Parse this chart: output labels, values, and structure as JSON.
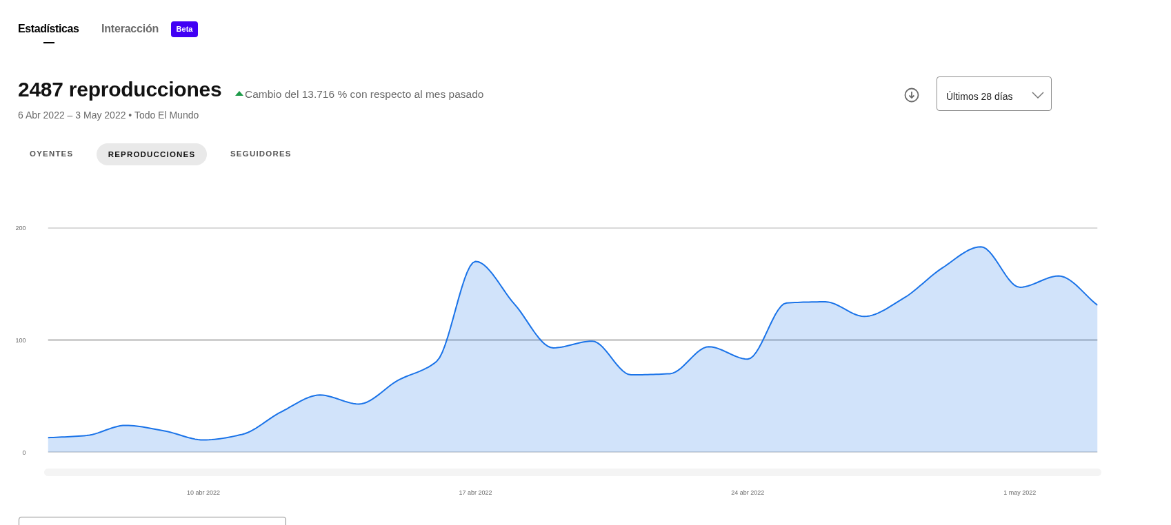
{
  "chart_data": {
    "type": "area",
    "title": "2487 reproducciones",
    "subtitle": "6 Abr 2022 – 3 May 2022 • Todo El Mundo",
    "annotations": [
      "Estadísticas",
      "Interacción",
      "Beta",
      "Cambio del 13.716 % con respecto al mes pasado",
      "OYENTES",
      "REPRODUCCIONES",
      "SEGUIDORES",
      "Últimos 28 días"
    ],
    "x": [
      "2022-04-06",
      "2022-04-07",
      "2022-04-08",
      "2022-04-09",
      "2022-04-10",
      "2022-04-11",
      "2022-04-12",
      "2022-04-13",
      "2022-04-14",
      "2022-04-15",
      "2022-04-16",
      "2022-04-17",
      "2022-04-18",
      "2022-04-19",
      "2022-04-20",
      "2022-04-21",
      "2022-04-22",
      "2022-04-23",
      "2022-04-24",
      "2022-04-25",
      "2022-04-26",
      "2022-04-27",
      "2022-04-28",
      "2022-04-29",
      "2022-04-30",
      "2022-05-01",
      "2022-05-02",
      "2022-05-03"
    ],
    "series": [
      {
        "color": "#1a73e8",
        "values": [
          13,
          15,
          24,
          19,
          11,
          16,
          36,
          51,
          43,
          64,
          81,
          170,
          132,
          93,
          99,
          69,
          70,
          94,
          83,
          133,
          134,
          121,
          137,
          164,
          183,
          147,
          157,
          131
        ]
      }
    ],
    "xlim": [
      "2022-04-06",
      "2022-05-03"
    ],
    "xticks": [
      {
        "value": "2022-04-10",
        "label": "10 abr 2022"
      },
      {
        "value": "2022-04-17",
        "label": "17 abr 2022"
      },
      {
        "value": "2022-04-24",
        "label": "24 abr 2022"
      },
      {
        "value": "2022-05-01",
        "label": "1 may 2022"
      }
    ],
    "ylim": [
      0,
      200
    ],
    "yticks": [
      0,
      100,
      200
    ],
    "grid": "y"
  }
}
